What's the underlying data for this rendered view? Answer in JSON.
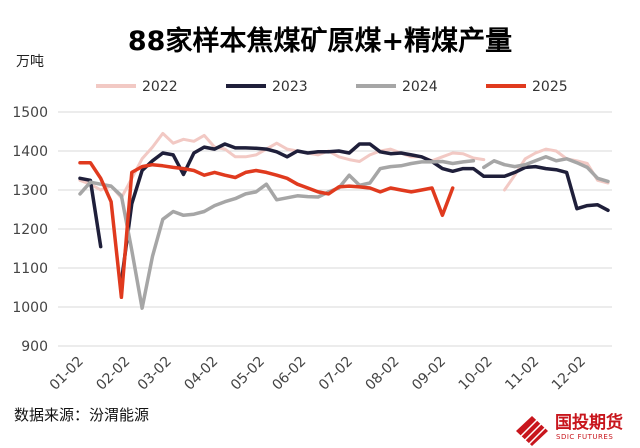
{
  "chart_data": {
    "type": "line",
    "title": "88家样本焦煤矿原煤+精煤产量",
    "unit_label": "万吨",
    "source": "数据来源：汾渭能源",
    "brand": {
      "name_cn": "国投期货",
      "name_en": "SDIC FUTURES"
    },
    "ylim": [
      900,
      1500
    ],
    "yticks": [
      "900",
      "1000",
      "1100",
      "1200",
      "1300",
      "1400",
      "1500"
    ],
    "xlim": [
      1,
      52
    ],
    "xticks": [
      {
        "label": "01-02",
        "week": 1
      },
      {
        "label": "02-02",
        "week": 5.5
      },
      {
        "label": "03-02",
        "week": 9.5
      },
      {
        "label": "04-02",
        "week": 14
      },
      {
        "label": "05-02",
        "week": 18.5
      },
      {
        "label": "06-02",
        "week": 22.5
      },
      {
        "label": "07-02",
        "week": 27
      },
      {
        "label": "08-02",
        "week": 31.5
      },
      {
        "label": "09-02",
        "week": 36
      },
      {
        "label": "10-02",
        "week": 40.5
      },
      {
        "label": "11-02",
        "week": 45
      },
      {
        "label": "12-02",
        "week": 49.5
      }
    ],
    "grid": true,
    "legend_position": "top",
    "series": [
      {
        "name": "2022",
        "color": "#f2c9c4",
        "width": 3,
        "segments": [
          [
            [
              1,
              1325
            ],
            [
              2,
              1315
            ],
            [
              3,
              1300
            ],
            [
              4,
              1310
            ],
            [
              5,
              1280
            ],
            [
              6,
              1330
            ],
            [
              7,
              1380
            ],
            [
              8,
              1410
            ],
            [
              9,
              1445
            ],
            [
              10,
              1420
            ],
            [
              11,
              1430
            ],
            [
              12,
              1425
            ],
            [
              13,
              1440
            ],
            [
              14,
              1410
            ],
            [
              15,
              1405
            ],
            [
              16,
              1385
            ],
            [
              17,
              1385
            ],
            [
              18,
              1390
            ],
            [
              19,
              1405
            ],
            [
              20,
              1420
            ],
            [
              21,
              1405
            ],
            [
              22,
              1400
            ],
            [
              23,
              1395
            ],
            [
              24,
              1390
            ],
            [
              25,
              1400
            ],
            [
              26,
              1385
            ],
            [
              27,
              1378
            ],
            [
              28,
              1373
            ],
            [
              29,
              1390
            ],
            [
              30,
              1400
            ],
            [
              31,
              1405
            ],
            [
              32,
              1395
            ],
            [
              33,
              1385
            ],
            [
              34,
              1385
            ],
            [
              35,
              1375
            ],
            [
              36,
              1385
            ],
            [
              37,
              1395
            ],
            [
              38,
              1393
            ],
            [
              39,
              1382
            ],
            [
              40,
              1378
            ]
          ],
          [
            [
              42,
              1300
            ],
            [
              43,
              1338
            ],
            [
              44,
              1380
            ],
            [
              45,
              1395
            ],
            [
              46,
              1405
            ],
            [
              47,
              1400
            ],
            [
              48,
              1380
            ],
            [
              49,
              1375
            ],
            [
              50,
              1368
            ],
            [
              51,
              1325
            ],
            [
              52,
              1318
            ]
          ]
        ]
      },
      {
        "name": "2023",
        "color": "#1f1f3a",
        "width": 3.5,
        "segments": [
          [
            [
              1,
              1330
            ],
            [
              2,
              1325
            ],
            [
              3,
              1155
            ]
          ],
          [
            [
              5,
              1065
            ],
            [
              6,
              1265
            ],
            [
              7,
              1350
            ],
            [
              8,
              1375
            ],
            [
              9,
              1395
            ],
            [
              10,
              1390
            ],
            [
              11,
              1340
            ],
            [
              12,
              1395
            ],
            [
              13,
              1410
            ],
            [
              14,
              1405
            ],
            [
              15,
              1418
            ],
            [
              16,
              1408
            ],
            [
              17,
              1408
            ],
            [
              18,
              1407
            ],
            [
              19,
              1405
            ],
            [
              20,
              1398
            ],
            [
              21,
              1385
            ],
            [
              22,
              1400
            ],
            [
              23,
              1395
            ],
            [
              24,
              1398
            ],
            [
              25,
              1398
            ],
            [
              26,
              1400
            ],
            [
              27,
              1395
            ],
            [
              28,
              1418
            ],
            [
              29,
              1418
            ],
            [
              30,
              1398
            ],
            [
              31,
              1393
            ],
            [
              32,
              1395
            ],
            [
              33,
              1390
            ],
            [
              34,
              1385
            ],
            [
              35,
              1373
            ],
            [
              36,
              1355
            ],
            [
              37,
              1348
            ],
            [
              38,
              1355
            ],
            [
              39,
              1355
            ],
            [
              40,
              1335
            ],
            [
              41,
              1335
            ],
            [
              42,
              1335
            ],
            [
              43,
              1345
            ],
            [
              44,
              1358
            ],
            [
              45,
              1360
            ],
            [
              46,
              1355
            ],
            [
              47,
              1352
            ],
            [
              48,
              1345
            ],
            [
              49,
              1252
            ],
            [
              50,
              1260
            ],
            [
              51,
              1262
            ],
            [
              52,
              1248
            ]
          ]
        ]
      },
      {
        "name": "2024",
        "color": "#a6a6a6",
        "width": 3.5,
        "segments": [
          [
            [
              1,
              1290
            ],
            [
              2,
              1320
            ],
            [
              3,
              1315
            ],
            [
              4,
              1310
            ],
            [
              5,
              1285
            ],
            [
              6,
              1145
            ],
            [
              7,
              997
            ],
            [
              8,
              1130
            ],
            [
              9,
              1225
            ],
            [
              10,
              1245
            ],
            [
              11,
              1235
            ],
            [
              12,
              1238
            ],
            [
              13,
              1245
            ],
            [
              14,
              1260
            ],
            [
              15,
              1270
            ],
            [
              16,
              1278
            ],
            [
              17,
              1290
            ],
            [
              18,
              1295
            ],
            [
              19,
              1315
            ],
            [
              20,
              1275
            ],
            [
              21,
              1280
            ],
            [
              22,
              1285
            ],
            [
              23,
              1283
            ],
            [
              24,
              1282
            ],
            [
              25,
              1295
            ],
            [
              26,
              1305
            ],
            [
              27,
              1338
            ],
            [
              28,
              1312
            ],
            [
              29,
              1318
            ],
            [
              30,
              1355
            ],
            [
              31,
              1360
            ],
            [
              32,
              1362
            ],
            [
              33,
              1368
            ],
            [
              34,
              1372
            ],
            [
              35,
              1372
            ],
            [
              36,
              1373
            ],
            [
              37,
              1368
            ],
            [
              38,
              1372
            ],
            [
              39,
              1375
            ]
          ],
          [
            [
              40,
              1358
            ],
            [
              41,
              1375
            ],
            [
              42,
              1365
            ],
            [
              43,
              1360
            ],
            [
              44,
              1365
            ],
            [
              45,
              1375
            ],
            [
              46,
              1385
            ],
            [
              47,
              1375
            ],
            [
              48,
              1380
            ],
            [
              49,
              1370
            ],
            [
              50,
              1358
            ],
            [
              51,
              1330
            ],
            [
              52,
              1322
            ]
          ]
        ]
      },
      {
        "name": "2025",
        "color": "#e03a1e",
        "width": 3.5,
        "segments": [
          [
            [
              1,
              1370
            ],
            [
              2,
              1370
            ],
            [
              3,
              1330
            ],
            [
              4,
              1270
            ],
            [
              5,
              1025
            ],
            [
              6,
              1345
            ],
            [
              7,
              1360
            ],
            [
              8,
              1365
            ],
            [
              9,
              1362
            ],
            [
              10,
              1358
            ],
            [
              11,
              1355
            ],
            [
              12,
              1350
            ],
            [
              13,
              1338
            ],
            [
              14,
              1345
            ],
            [
              15,
              1338
            ],
            [
              16,
              1332
            ],
            [
              17,
              1345
            ],
            [
              18,
              1350
            ],
            [
              19,
              1345
            ],
            [
              20,
              1338
            ],
            [
              21,
              1330
            ],
            [
              22,
              1315
            ],
            [
              23,
              1305
            ],
            [
              24,
              1295
            ],
            [
              25,
              1290
            ],
            [
              26,
              1308
            ],
            [
              27,
              1310
            ],
            [
              28,
              1308
            ],
            [
              29,
              1305
            ],
            [
              30,
              1295
            ],
            [
              31,
              1305
            ],
            [
              32,
              1300
            ],
            [
              33,
              1295
            ],
            [
              34,
              1300
            ],
            [
              35,
              1305
            ],
            [
              36,
              1235
            ],
            [
              37,
              1305
            ]
          ]
        ]
      }
    ]
  }
}
